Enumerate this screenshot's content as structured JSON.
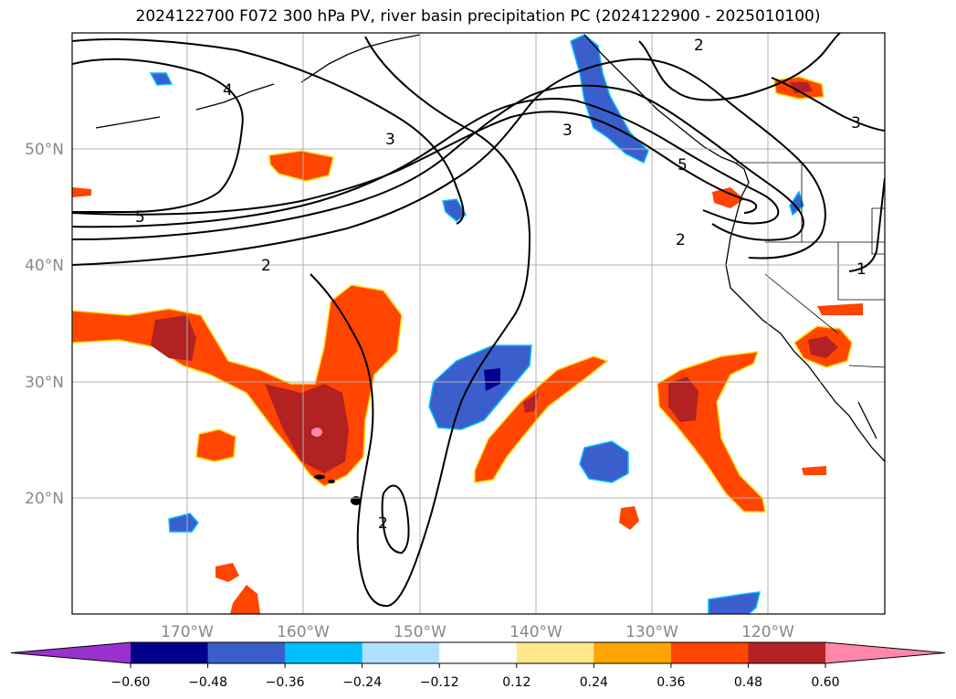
{
  "title": "2024122700 F072 300 hPa PV, river basin precipitation PC (2024122900 - 2025010100)",
  "lat_labels": [
    "50°N",
    "40°N",
    "30°N",
    "20°N"
  ],
  "lon_labels": [
    "170°W",
    "160°W",
    "150°W",
    "140°W",
    "130°W",
    "120°W"
  ],
  "colorbar": {
    "ticks": [
      "−0.60",
      "−0.48",
      "−0.36",
      "−0.24",
      "−0.12",
      "0.12",
      "0.24",
      "0.36",
      "0.48",
      "0.60"
    ],
    "colors": [
      "#9932cc",
      "#00008b",
      "#3a5fcd",
      "#00bfff",
      "#b0e0ff",
      "#ffffff",
      "#ffe98a",
      "#ffa500",
      "#ff4500",
      "#b22222",
      "#ff88aa"
    ]
  },
  "contour_labels": [
    {
      "text": "4",
      "name": "contour-label-4a"
    },
    {
      "text": "3",
      "name": "contour-label-3a"
    },
    {
      "text": "5",
      "name": "contour-label-5a"
    },
    {
      "text": "2",
      "name": "contour-label-2a"
    },
    {
      "text": "3",
      "name": "contour-label-3b"
    },
    {
      "text": "5",
      "name": "contour-label-5b"
    },
    {
      "text": "2",
      "name": "contour-label-2b"
    },
    {
      "text": "1",
      "name": "contour-label-1"
    },
    {
      "text": "2",
      "name": "contour-label-2c"
    },
    {
      "text": "3",
      "name": "contour-label-3c"
    },
    {
      "text": "2",
      "name": "contour-label-2d"
    }
  ]
}
